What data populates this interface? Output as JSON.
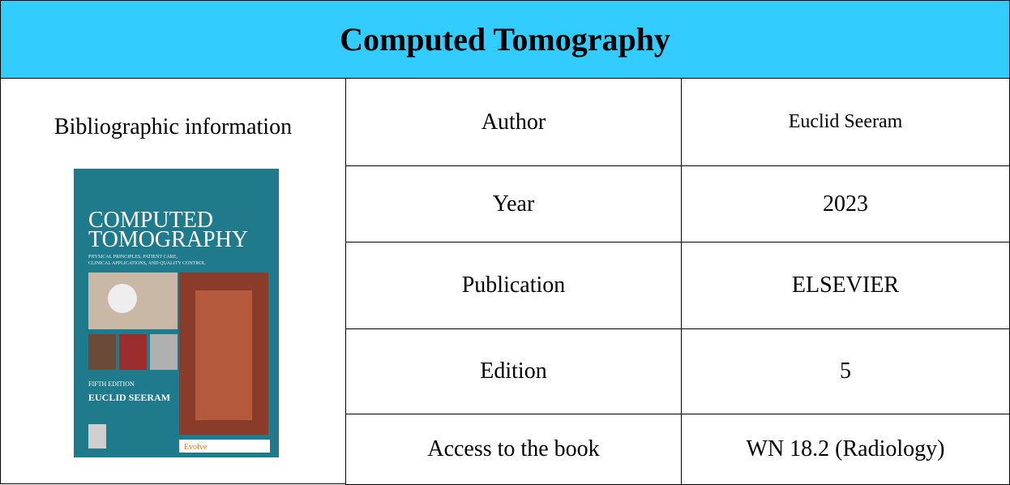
{
  "title": "Computed Tomography",
  "info_label": "Bibliographic information",
  "cover": {
    "title_line1": "COMPUTED",
    "title_line2": "TOMOGRAPHY",
    "subtitle_line1": "PHYSICAL PRINCIPLES, PATIENT CARE,",
    "subtitle_line2": "CLINICAL APPLICATIONS, AND QUALITY CONTROL",
    "edition": "FIFTH EDITION",
    "author": "EUCLID SEERAM",
    "badge": "Evolve"
  },
  "table": {
    "rows": [
      [
        "Author",
        "Euclid Seeram"
      ],
      [
        "Year",
        "2023"
      ],
      [
        "Publication",
        "ELSEVIER"
      ],
      [
        "Edition",
        "5"
      ],
      [
        "Access to the book",
        "WN 18.2 (Radiology)"
      ]
    ]
  }
}
